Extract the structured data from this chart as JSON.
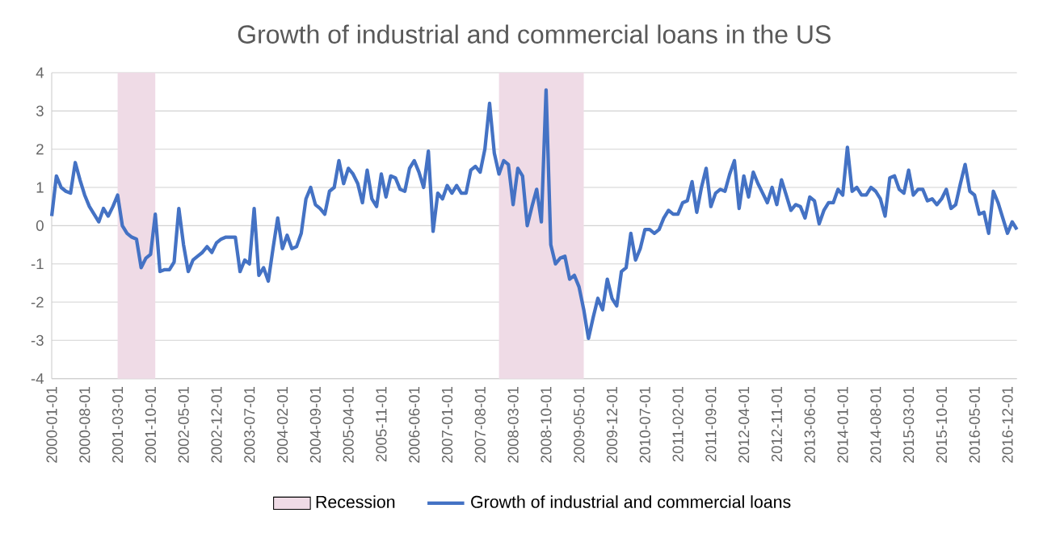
{
  "chart_data": {
    "type": "line",
    "title": "Growth of industrial and commercial loans in the US",
    "x": [
      "2000-01",
      "2000-02",
      "2000-03",
      "2000-04",
      "2000-05",
      "2000-06",
      "2000-07",
      "2000-08",
      "2000-09",
      "2000-10",
      "2000-11",
      "2000-12",
      "2001-01",
      "2001-02",
      "2001-03",
      "2001-04",
      "2001-05",
      "2001-06",
      "2001-07",
      "2001-08",
      "2001-09",
      "2001-10",
      "2001-11",
      "2001-12",
      "2002-01",
      "2002-02",
      "2002-03",
      "2002-04",
      "2002-05",
      "2002-06",
      "2002-07",
      "2002-08",
      "2002-09",
      "2002-10",
      "2002-11",
      "2002-12",
      "2003-01",
      "2003-02",
      "2003-03",
      "2003-04",
      "2003-05",
      "2003-06",
      "2003-07",
      "2003-08",
      "2003-09",
      "2003-10",
      "2003-11",
      "2003-12",
      "2004-01",
      "2004-02",
      "2004-03",
      "2004-04",
      "2004-05",
      "2004-06",
      "2004-07",
      "2004-08",
      "2004-09",
      "2004-10",
      "2004-11",
      "2004-12",
      "2005-01",
      "2005-02",
      "2005-03",
      "2005-04",
      "2005-05",
      "2005-06",
      "2005-07",
      "2005-08",
      "2005-09",
      "2005-10",
      "2005-11",
      "2005-12",
      "2006-01",
      "2006-02",
      "2006-03",
      "2006-04",
      "2006-05",
      "2006-06",
      "2006-07",
      "2006-08",
      "2006-09",
      "2006-10",
      "2006-11",
      "2006-12",
      "2007-01",
      "2007-02",
      "2007-03",
      "2007-04",
      "2007-05",
      "2007-06",
      "2007-07",
      "2007-08",
      "2007-09",
      "2007-10",
      "2007-11",
      "2007-12",
      "2008-01",
      "2008-02",
      "2008-03",
      "2008-04",
      "2008-05",
      "2008-06",
      "2008-07",
      "2008-08",
      "2008-09",
      "2008-10",
      "2008-11",
      "2008-12",
      "2009-01",
      "2009-02",
      "2009-03",
      "2009-04",
      "2009-05",
      "2009-06",
      "2009-07",
      "2009-08",
      "2009-09",
      "2009-10",
      "2009-11",
      "2009-12",
      "2010-01",
      "2010-02",
      "2010-03",
      "2010-04",
      "2010-05",
      "2010-06",
      "2010-07",
      "2010-08",
      "2010-09",
      "2010-10",
      "2010-11",
      "2010-12",
      "2011-01",
      "2011-02",
      "2011-03",
      "2011-04",
      "2011-05",
      "2011-06",
      "2011-07",
      "2011-08",
      "2011-09",
      "2011-10",
      "2011-11",
      "2011-12",
      "2012-01",
      "2012-02",
      "2012-03",
      "2012-04",
      "2012-05",
      "2012-06",
      "2012-07",
      "2012-08",
      "2012-09",
      "2012-10",
      "2012-11",
      "2012-12",
      "2013-01",
      "2013-02",
      "2013-03",
      "2013-04",
      "2013-05",
      "2013-06",
      "2013-07",
      "2013-08",
      "2013-09",
      "2013-10",
      "2013-11",
      "2013-12",
      "2014-01",
      "2014-02",
      "2014-03",
      "2014-04",
      "2014-05",
      "2014-06",
      "2014-07",
      "2014-08",
      "2014-09",
      "2014-10",
      "2014-11",
      "2014-12",
      "2015-01",
      "2015-02",
      "2015-03",
      "2015-04",
      "2015-05",
      "2015-06",
      "2015-07",
      "2015-08",
      "2015-09",
      "2015-10",
      "2015-11",
      "2015-12",
      "2016-01",
      "2016-02",
      "2016-03",
      "2016-04",
      "2016-05",
      "2016-06",
      "2016-07",
      "2016-08",
      "2016-09",
      "2016-10",
      "2016-11",
      "2016-12",
      "2017-01",
      "2017-02"
    ],
    "ylim": [
      -4,
      4
    ],
    "yticks": [
      -4,
      -3,
      -2,
      -1,
      0,
      1,
      2,
      3,
      4
    ],
    "xlim": [
      "2000-01",
      "2017-02"
    ],
    "xticks": [
      {
        "value": "2000-01",
        "label": "2000-01-01"
      },
      {
        "value": "2000-08",
        "label": "2000-08-01"
      },
      {
        "value": "2001-03",
        "label": "2001-03-01"
      },
      {
        "value": "2001-10",
        "label": "2001-10-01"
      },
      {
        "value": "2002-05",
        "label": "2002-05-01"
      },
      {
        "value": "2002-12",
        "label": "2002-12-01"
      },
      {
        "value": "2003-07",
        "label": "2003-07-01"
      },
      {
        "value": "2004-02",
        "label": "2004-02-01"
      },
      {
        "value": "2004-09",
        "label": "2004-09-01"
      },
      {
        "value": "2005-04",
        "label": "2005-04-01"
      },
      {
        "value": "2005-11",
        "label": "2005-11-01"
      },
      {
        "value": "2006-06",
        "label": "2006-06-01"
      },
      {
        "value": "2007-01",
        "label": "2007-01-01"
      },
      {
        "value": "2007-08",
        "label": "2007-08-01"
      },
      {
        "value": "2008-03",
        "label": "2008-03-01"
      },
      {
        "value": "2008-10",
        "label": "2008-10-01"
      },
      {
        "value": "2009-05",
        "label": "2009-05-01"
      },
      {
        "value": "2009-12",
        "label": "2009-12-01"
      },
      {
        "value": "2010-07",
        "label": "2010-07-01"
      },
      {
        "value": "2011-02",
        "label": "2011-02-01"
      },
      {
        "value": "2011-09",
        "label": "2011-09-01"
      },
      {
        "value": "2012-04",
        "label": "2012-04-01"
      },
      {
        "value": "2012-11",
        "label": "2012-11-01"
      },
      {
        "value": "2013-06",
        "label": "2013-06-01"
      },
      {
        "value": "2014-01",
        "label": "2014-01-01"
      },
      {
        "value": "2014-08",
        "label": "2014-08-01"
      },
      {
        "value": "2015-03",
        "label": "2015-03-01"
      },
      {
        "value": "2015-10",
        "label": "2015-10-01"
      },
      {
        "value": "2016-05",
        "label": "2016-05-01"
      },
      {
        "value": "2016-12",
        "label": "2016-12-01"
      }
    ],
    "grid": "y",
    "legend": "bottom",
    "bands": [
      {
        "axis": "x",
        "from": "2001-03",
        "to": "2001-11",
        "label": "Recession",
        "color": "#efdbe6"
      },
      {
        "axis": "x",
        "from": "2007-12",
        "to": "2009-06",
        "color": "#efdbe6"
      }
    ],
    "series": [
      {
        "name": "Growth of industrial and commercial loans",
        "color": "#4472c4",
        "values": [
          0.25,
          1.3,
          1.0,
          0.9,
          0.85,
          1.65,
          1.2,
          0.8,
          0.5,
          0.3,
          0.1,
          0.45,
          0.25,
          0.5,
          0.8,
          0.0,
          -0.2,
          -0.3,
          -0.35,
          -1.1,
          -0.85,
          -0.75,
          0.3,
          -1.2,
          -1.15,
          -1.15,
          -0.95,
          0.45,
          -0.5,
          -1.2,
          -0.9,
          -0.8,
          -0.7,
          -0.55,
          -0.7,
          -0.45,
          -0.35,
          -0.3,
          -0.3,
          -0.3,
          -1.2,
          -0.9,
          -1.0,
          0.45,
          -1.3,
          -1.1,
          -1.45,
          -0.6,
          0.2,
          -0.6,
          -0.25,
          -0.6,
          -0.55,
          -0.2,
          0.7,
          1.0,
          0.55,
          0.45,
          0.3,
          0.9,
          1.0,
          1.7,
          1.1,
          1.5,
          1.35,
          1.1,
          0.6,
          1.45,
          0.7,
          0.5,
          1.35,
          0.75,
          1.3,
          1.25,
          0.95,
          0.9,
          1.5,
          1.7,
          1.4,
          1.0,
          1.95,
          -0.15,
          0.85,
          0.7,
          1.05,
          0.85,
          1.05,
          0.85,
          0.85,
          1.45,
          1.55,
          1.4,
          2.0,
          3.2,
          1.9,
          1.35,
          1.7,
          1.6,
          0.55,
          1.5,
          1.3,
          0.0,
          0.5,
          0.95,
          0.1,
          3.55,
          -0.5,
          -1.0,
          -0.85,
          -0.8,
          -1.4,
          -1.3,
          -1.6,
          -2.2,
          -2.95,
          -2.4,
          -1.9,
          -2.2,
          -1.4,
          -1.9,
          -2.1,
          -1.2,
          -1.1,
          -0.2,
          -0.9,
          -0.6,
          -0.1,
          -0.1,
          -0.2,
          -0.1,
          0.2,
          0.4,
          0.3,
          0.3,
          0.6,
          0.65,
          1.15,
          0.35,
          1.0,
          1.5,
          0.5,
          0.85,
          0.95,
          0.9,
          1.35,
          1.7,
          0.45,
          1.3,
          0.75,
          1.4,
          1.1,
          0.85,
          0.6,
          1.0,
          0.55,
          1.2,
          0.8,
          0.4,
          0.55,
          0.5,
          0.2,
          0.75,
          0.65,
          0.05,
          0.4,
          0.6,
          0.6,
          0.95,
          0.8,
          2.05,
          0.9,
          1.0,
          0.8,
          0.8,
          1.0,
          0.9,
          0.7,
          0.25,
          1.25,
          1.3,
          0.95,
          0.85,
          1.45,
          0.8,
          0.95,
          0.95,
          0.65,
          0.7,
          0.55,
          0.7,
          0.95,
          0.45,
          0.55,
          1.1,
          1.6,
          0.9,
          0.8,
          0.3,
          0.35,
          -0.2,
          0.9,
          0.6,
          0.2,
          -0.2,
          0.1,
          -0.1
        ]
      }
    ]
  }
}
